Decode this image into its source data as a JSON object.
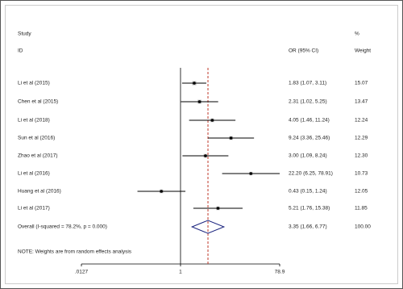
{
  "chart_data": {
    "type": "forest",
    "header": {
      "study": "Study",
      "id": "ID",
      "percent": "%",
      "or_ci": "OR (95% CI)",
      "weight": "Weight"
    },
    "studies": [
      "Li et al (2015)",
      "Chen et al (2015)",
      "Li et al (2018)",
      "Sun et al (2016)",
      "Zhao et al (2017)",
      "Li et al (2016)",
      "Huang et al (2016)",
      "Li et al (2017)"
    ],
    "or": [
      1.83,
      2.31,
      4.05,
      9.24,
      3.0,
      22.2,
      0.43,
      5.21
    ],
    "lower": [
      1.07,
      1.02,
      1.46,
      3.36,
      1.09,
      6.25,
      0.15,
      1.76
    ],
    "upper": [
      3.11,
      5.25,
      11.24,
      25.46,
      8.24,
      78.91,
      1.24,
      15.38
    ],
    "ci_labels": [
      "1.83 (1.07, 3.11)",
      "2.31 (1.02, 5.25)",
      "4.05 (1.46, 11.24)",
      "9.24 (3.36, 25.46)",
      "3.00 (1.09, 8.24)",
      "22.20 (6.25, 78.91)",
      "0.43 (0.15, 1.24)",
      "5.21 (1.76, 15.38)"
    ],
    "weights": [
      15.07,
      13.47,
      12.24,
      12.29,
      12.3,
      10.73,
      12.05,
      11.85
    ],
    "weight_labels": [
      "15.07",
      "13.47",
      "12.24",
      "12.29",
      "12.30",
      "10.73",
      "12.05",
      "11.85"
    ],
    "overall": {
      "label": "Overall  (I-squared = 78.2%, p = 0.000)",
      "or": 3.35,
      "lower": 1.66,
      "upper": 6.77,
      "ci_label": "3.35 (1.66, 6.77)",
      "weight": 100,
      "weight_label": "100.00"
    },
    "note": "NOTE: Weights are from random effects analysis",
    "xscale": "log",
    "xlim": [
      0.0127,
      78.9
    ],
    "xticks": [
      {
        "value": 0.0127,
        "label": ".0127"
      },
      1,
      78.9
    ],
    "null_value": 1,
    "overall_line_color": "#c0392b",
    "diamond_color": "#1a237e"
  }
}
